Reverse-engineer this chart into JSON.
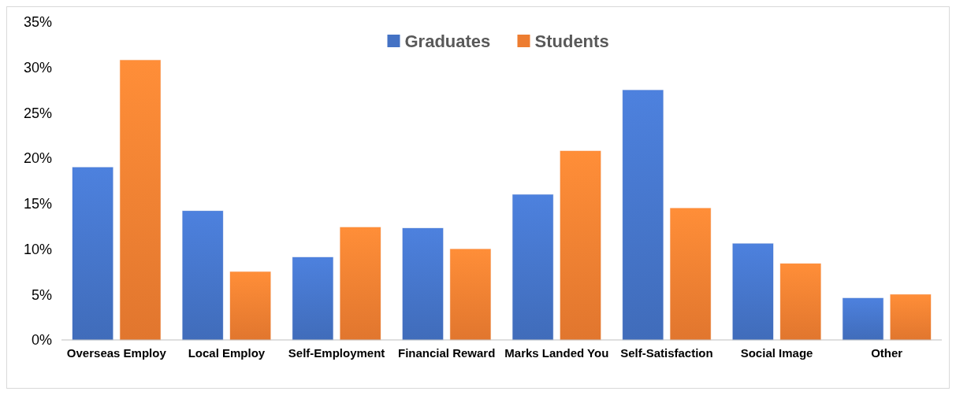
{
  "chart_data": {
    "type": "bar",
    "categories": [
      "Overseas Employ",
      "Local Employ",
      "Self-Employment",
      "Financial Reward",
      "Marks Landed You",
      "Self-Satisfaction",
      "Social Image",
      "Other"
    ],
    "series": [
      {
        "name": "Graduates",
        "color": "#4472c4",
        "values": [
          19.0,
          14.2,
          9.1,
          12.3,
          16.0,
          27.5,
          10.6,
          4.6
        ]
      },
      {
        "name": "Students",
        "color": "#ed7d31",
        "values": [
          30.8,
          7.5,
          12.4,
          10.0,
          20.8,
          14.5,
          8.4,
          5.0
        ]
      }
    ],
    "ylim": [
      0,
      35
    ],
    "yticks": [
      {
        "value": 0,
        "label": "0%"
      },
      {
        "value": 5,
        "label": "5%"
      },
      {
        "value": 10,
        "label": "10%"
      },
      {
        "value": 15,
        "label": "15%"
      },
      {
        "value": 20,
        "label": "20%"
      },
      {
        "value": 25,
        "label": "25%"
      },
      {
        "value": 30,
        "label": "30%"
      },
      {
        "value": 35,
        "label": "35%"
      }
    ],
    "legend": "top"
  }
}
